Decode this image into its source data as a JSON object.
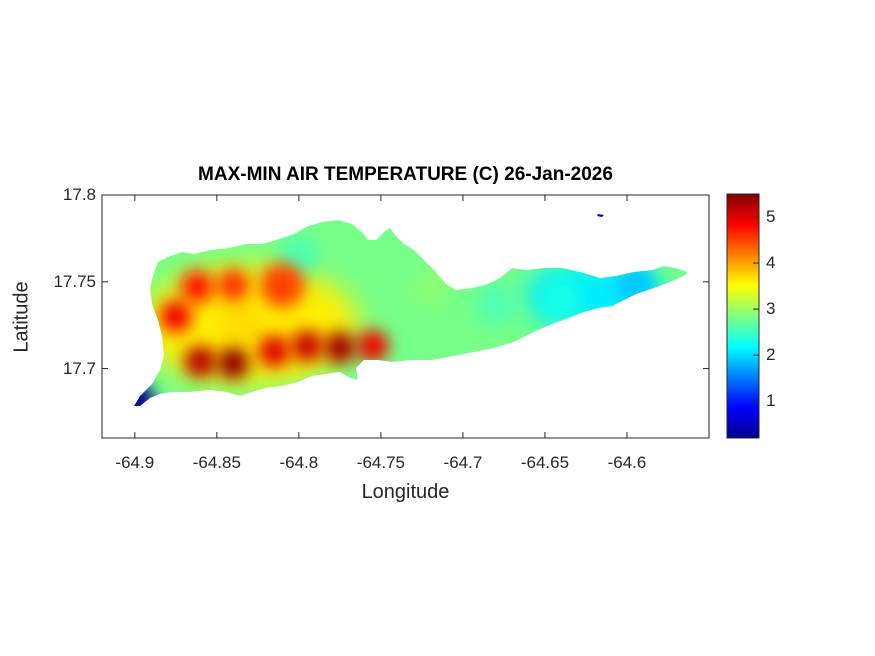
{
  "title": "MAX-MIN AIR TEMPERATURE (C) 26-Jan-2026",
  "xlabel": "Longitude",
  "ylabel": "Latitude",
  "x_ticks": [
    "-64.9",
    "-64.85",
    "-64.8",
    "-64.75",
    "-64.7",
    "-64.65",
    "-64.6"
  ],
  "y_ticks": [
    "17.8",
    "17.75",
    "17.7"
  ],
  "colorbar_ticks": [
    "5",
    "4",
    "3",
    "2",
    "1"
  ],
  "colormap": "jet",
  "chart_data": {
    "type": "heatmap",
    "title": "MAX-MIN AIR TEMPERATURE (C) 26-Jan-2026",
    "xlabel": "Longitude",
    "ylabel": "Latitude",
    "xlim": [
      -64.92,
      -64.55
    ],
    "ylim": [
      17.66,
      17.8
    ],
    "clim": [
      0.2,
      5.5
    ],
    "colorbar_label": "",
    "hotspots": [
      {
        "lon": -64.84,
        "lat": 17.703,
        "value": 5.4
      },
      {
        "lon": -64.86,
        "lat": 17.704,
        "value": 5.2
      },
      {
        "lon": -64.775,
        "lat": 17.712,
        "value": 5.3
      },
      {
        "lon": -64.795,
        "lat": 17.713,
        "value": 5.1
      },
      {
        "lon": -64.815,
        "lat": 17.71,
        "value": 5.0
      },
      {
        "lon": -64.875,
        "lat": 17.73,
        "value": 4.9
      },
      {
        "lon": -64.862,
        "lat": 17.747,
        "value": 4.8
      },
      {
        "lon": -64.84,
        "lat": 17.748,
        "value": 4.6
      },
      {
        "lon": -64.81,
        "lat": 17.748,
        "value": 4.5
      },
      {
        "lon": -64.755,
        "lat": 17.713,
        "value": 4.9
      },
      {
        "lon": -64.835,
        "lat": 17.725,
        "value": 3.7
      },
      {
        "lon": -64.72,
        "lat": 17.745,
        "value": 2.9
      },
      {
        "lon": -64.68,
        "lat": 17.737,
        "value": 2.6
      },
      {
        "lon": -64.64,
        "lat": 17.74,
        "value": 2.3
      },
      {
        "lon": -64.595,
        "lat": 17.748,
        "value": 1.9
      },
      {
        "lon": -64.8,
        "lat": 17.765,
        "value": 2.6
      },
      {
        "lon": -64.9,
        "lat": 17.681,
        "value": 0.3
      },
      {
        "lon": -64.626,
        "lat": 17.788,
        "value": 0.4
      }
    ]
  }
}
